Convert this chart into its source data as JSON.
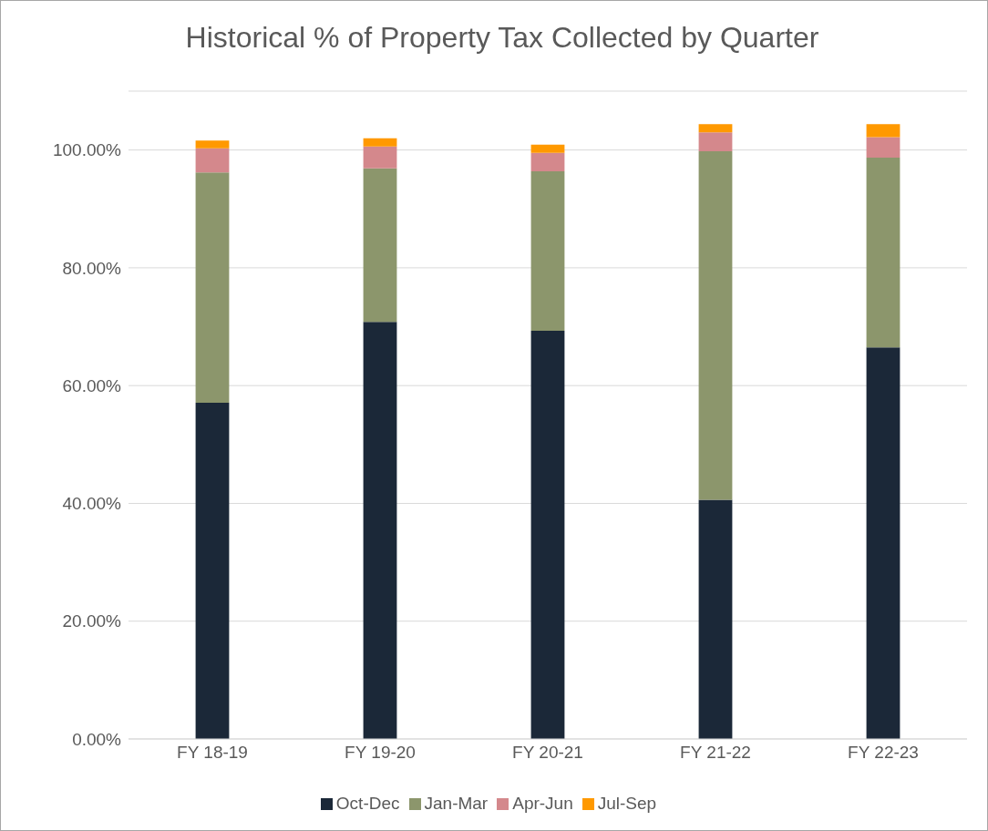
{
  "chart_data": {
    "type": "bar",
    "title": "Historical % of Property Tax Collected by Quarter",
    "categories": [
      "FY 18-19",
      "FY 19-20",
      "FY 20-21",
      "FY 21-22",
      "FY 22-23"
    ],
    "stacked": true,
    "series": [
      {
        "name": "Oct-Dec",
        "color": "#1b2838",
        "values": [
          57.1,
          70.8,
          69.3,
          40.6,
          66.5
        ]
      },
      {
        "name": "Jan-Mar",
        "color": "#8c966c",
        "values": [
          39.1,
          26.1,
          27.1,
          59.2,
          32.2
        ]
      },
      {
        "name": "Apr-Jun",
        "color": "#d4888c",
        "values": [
          4.1,
          3.7,
          3.1,
          3.2,
          3.5
        ]
      },
      {
        "name": "Jul-Sep",
        "color": "#ff9900",
        "values": [
          1.3,
          1.4,
          1.4,
          1.4,
          2.2
        ]
      }
    ],
    "ylim": [
      0,
      110
    ],
    "yticks": [
      {
        "value": 0,
        "label": "0.00%"
      },
      {
        "value": 20,
        "label": "20.00%"
      },
      {
        "value": 40,
        "label": "40.00%"
      },
      {
        "value": 60,
        "label": "60.00%"
      },
      {
        "value": 80,
        "label": "80.00%"
      },
      {
        "value": 100,
        "label": "100.00%"
      }
    ],
    "grid": "y",
    "legend": "bottom"
  }
}
